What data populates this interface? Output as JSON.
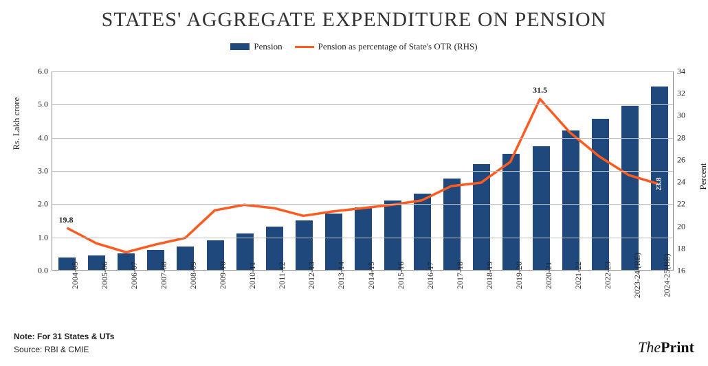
{
  "title": "STATES' AGGREGATE EXPENDITURE ON PENSION",
  "legend": {
    "series1_label": "Pension",
    "series2_label": "Pension as percentage of State's OTR (RHS)"
  },
  "chart": {
    "type": "bar+line",
    "background_color": "#ffffff",
    "grid_color": "#bfbfbf",
    "axis_color": "#888888",
    "categories": [
      "2004-05",
      "2005-06",
      "2006-07",
      "2007-08",
      "2008-09",
      "2009-10",
      "2010-11",
      "2011-12",
      "2012-13",
      "2013-14",
      "2014-15",
      "2015-16",
      "2016-17",
      "2017-18",
      "2018-19",
      "2019-20",
      "2020-21",
      "2021-22",
      "2022-23",
      "2023-24 (RE)",
      "2024-25(BE)"
    ],
    "bars": {
      "values": [
        0.38,
        0.43,
        0.5,
        0.6,
        0.7,
        0.88,
        1.1,
        1.3,
        1.5,
        1.7,
        1.88,
        2.08,
        2.3,
        2.75,
        3.18,
        3.5,
        3.72,
        4.2,
        4.55,
        4.95,
        5.52
      ],
      "color": "#1f497d",
      "bar_width_frac": 0.58
    },
    "line": {
      "values": [
        19.8,
        18.4,
        17.6,
        18.3,
        18.9,
        21.4,
        21.9,
        21.6,
        20.9,
        21.3,
        21.6,
        21.9,
        22.3,
        23.6,
        23.9,
        25.8,
        31.5,
        28.5,
        26.3,
        24.6,
        23.8
      ],
      "color": "#ff5a1f",
      "width": 3.5
    },
    "y_left": {
      "min": 0.0,
      "max": 6.0,
      "step": 1.0,
      "label": "Rs. Lakh crore",
      "fontsize": 13
    },
    "y_right": {
      "min": 16,
      "max": 34,
      "step": 2,
      "label": "Percent",
      "fontsize": 13
    },
    "tick_fontsize": 12,
    "xlabel_fontsize": 12,
    "annotations": [
      {
        "category": "2004-05",
        "text": "19.8",
        "position": "above-line",
        "color": "#222",
        "bold": true
      },
      {
        "category": "2020-21",
        "text": "31.5",
        "position": "above-line",
        "color": "#222",
        "bold": true
      },
      {
        "category": "2024-25(BE)",
        "text": "23.8",
        "position": "in-bar-vertical",
        "color": "#fff",
        "bold": true
      }
    ]
  },
  "footer": {
    "note": "Note: For 31 States & UTs",
    "source": "Source: RBI & CMIE"
  },
  "brand": {
    "part1": "The",
    "part2": "Print"
  }
}
